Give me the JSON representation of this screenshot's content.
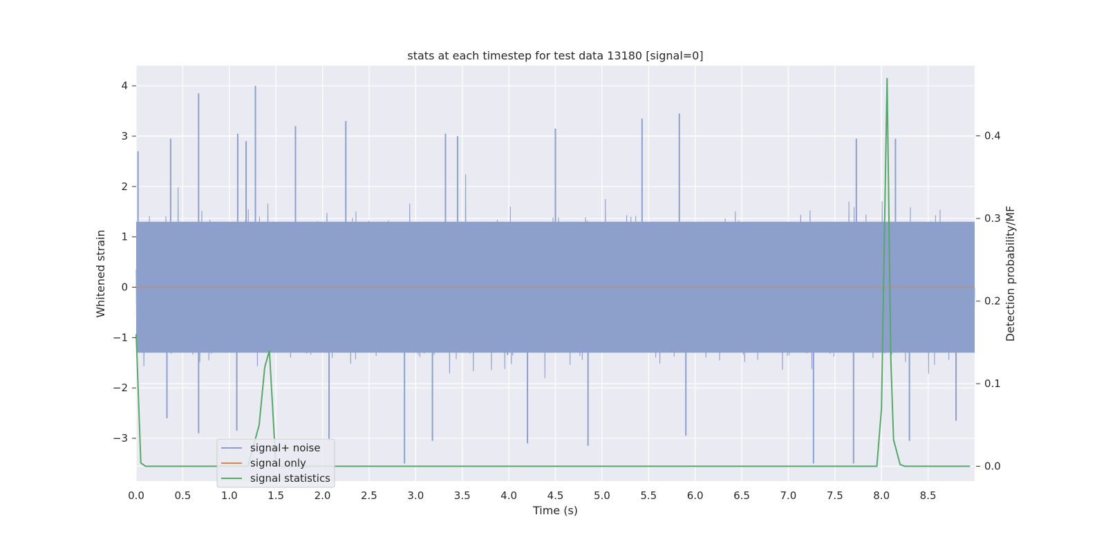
{
  "chart_data": {
    "type": "line",
    "title": "stats at each timestep for test data 13180 [signal=0]",
    "xlabel": "Time (s)",
    "ylabel": "Whitened strain",
    "y2label": "Detection probability/MF",
    "xlim": [
      0,
      9.0
    ],
    "ylim": [
      -3.85,
      4.4
    ],
    "y2lim": [
      -0.018,
      0.485
    ],
    "x_ticks": [
      "0.0",
      "0.5",
      "1.0",
      "1.5",
      "2.0",
      "2.5",
      "3.0",
      "3.5",
      "4.0",
      "4.5",
      "5.0",
      "5.5",
      "6.0",
      "6.5",
      "7.0",
      "7.5",
      "8.0",
      "8.5"
    ],
    "y_ticks": [
      "−3",
      "−2",
      "−1",
      "0",
      "1",
      "2",
      "3",
      "4"
    ],
    "y2_ticks": [
      "0.0",
      "0.1",
      "0.2",
      "0.3",
      "0.4"
    ],
    "grid": true,
    "legend_position": "lower-left",
    "series": [
      {
        "name": "signal+ noise",
        "axis": "left",
        "color": "#8da0cb",
        "description_values": "dense whitened noise spanning roughly -3.5 to 4.0",
        "envelope_top_approx": 1.3,
        "envelope_bottom_approx": -1.3,
        "spikes": [
          {
            "x": 0.02,
            "y": 2.7
          },
          {
            "x": 0.37,
            "y": 2.95
          },
          {
            "x": 0.67,
            "y": 3.85
          },
          {
            "x": 1.09,
            "y": 3.05
          },
          {
            "x": 1.18,
            "y": 2.9
          },
          {
            "x": 1.28,
            "y": 4.0
          },
          {
            "x": 1.71,
            "y": 3.2
          },
          {
            "x": 2.25,
            "y": 3.3
          },
          {
            "x": 3.32,
            "y": 3.05
          },
          {
            "x": 3.45,
            "y": 3.0
          },
          {
            "x": 4.5,
            "y": 3.15
          },
          {
            "x": 5.43,
            "y": 3.35
          },
          {
            "x": 5.83,
            "y": 3.45
          },
          {
            "x": 7.73,
            "y": 2.95
          },
          {
            "x": 8.15,
            "y": 2.95
          },
          {
            "x": 0.33,
            "y": -2.6
          },
          {
            "x": 0.67,
            "y": -2.9
          },
          {
            "x": 1.08,
            "y": -2.85
          },
          {
            "x": 2.07,
            "y": -3.05
          },
          {
            "x": 2.88,
            "y": -3.5
          },
          {
            "x": 3.18,
            "y": -3.05
          },
          {
            "x": 4.2,
            "y": -3.1
          },
          {
            "x": 4.85,
            "y": -3.15
          },
          {
            "x": 5.9,
            "y": -2.95
          },
          {
            "x": 7.27,
            "y": -3.5
          },
          {
            "x": 7.7,
            "y": -3.5
          },
          {
            "x": 8.3,
            "y": -3.05
          },
          {
            "x": 8.8,
            "y": -2.65
          }
        ]
      },
      {
        "name": "signal only",
        "axis": "left",
        "color": "#dd8452",
        "x": [
          0,
          9.0
        ],
        "y": [
          0,
          0
        ]
      },
      {
        "name": "signal statistics",
        "axis": "right",
        "color": "#55a868",
        "x": [
          0.0,
          0.05,
          0.1,
          0.2,
          0.3,
          0.5,
          0.8,
          1.0,
          1.2,
          1.32,
          1.38,
          1.43,
          1.46,
          1.5,
          1.55,
          2.0,
          3.0,
          4.0,
          5.0,
          6.0,
          7.0,
          7.5,
          7.95,
          8.0,
          8.06,
          8.1,
          8.13,
          8.2,
          8.25,
          8.5,
          8.95
        ],
        "y": [
          0.16,
          0.004,
          0.0,
          0.0,
          0.0,
          0.0,
          0.0,
          0.0,
          0.0,
          0.05,
          0.12,
          0.14,
          0.08,
          0.0,
          0.0,
          0.0,
          0.0,
          0.0,
          0.0,
          0.0,
          0.0,
          0.0,
          0.0,
          0.07,
          0.47,
          0.13,
          0.032,
          0.002,
          0.0,
          0.0,
          0.0
        ]
      }
    ]
  }
}
